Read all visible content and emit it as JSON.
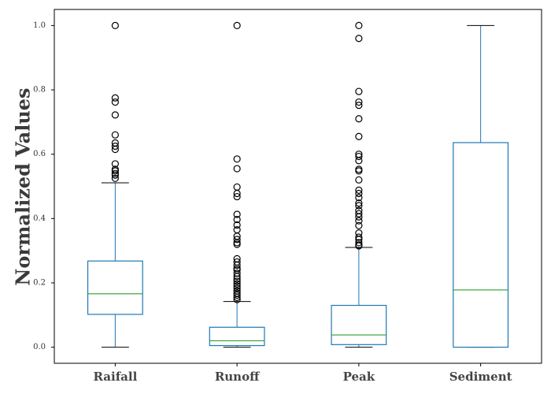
{
  "chart_data": {
    "type": "box",
    "title": "",
    "xlabel": "",
    "ylabel": "Normalized Values",
    "ylim": [
      -0.05,
      1.05
    ],
    "yticks": [
      0.0,
      0.2,
      0.4,
      0.6,
      0.8,
      1.0
    ],
    "ytick_labels": [
      "0.0",
      "0.2",
      "0.4",
      "0.6",
      "0.8",
      "1.0"
    ],
    "grid": false,
    "colors": {
      "box": "#1f77b4",
      "median": "#2ca02c",
      "whisker": "#1f77b4",
      "cap": "#000000",
      "flier": "#000000"
    },
    "categories": [
      "Raifall",
      "Runoff",
      "Peak",
      "Sediment"
    ],
    "boxes": [
      {
        "name": "Raifall",
        "whisker_low": 0.0,
        "q1": 0.102,
        "median": 0.166,
        "q3": 0.268,
        "whisker_high": 0.511,
        "fliers": [
          1.0,
          0.775,
          0.762,
          0.722,
          0.66,
          0.635,
          0.625,
          0.615,
          0.57,
          0.553,
          0.548,
          0.54,
          0.535,
          0.525
        ]
      },
      {
        "name": "Runoff",
        "whisker_low": 0.0,
        "q1": 0.005,
        "median": 0.02,
        "q3": 0.062,
        "whisker_high": 0.142,
        "fliers": [
          1.0,
          0.585,
          0.555,
          0.498,
          0.478,
          0.468,
          0.413,
          0.397,
          0.38,
          0.365,
          0.345,
          0.335,
          0.325,
          0.32,
          0.275,
          0.265,
          0.255,
          0.245,
          0.24,
          0.23,
          0.22,
          0.212,
          0.205,
          0.197,
          0.19,
          0.183,
          0.175,
          0.168,
          0.162,
          0.155,
          0.148
        ]
      },
      {
        "name": "Peak",
        "whisker_low": 0.0,
        "q1": 0.008,
        "median": 0.038,
        "q3": 0.13,
        "whisker_high": 0.31,
        "fliers": [
          1.0,
          0.96,
          0.795,
          0.762,
          0.752,
          0.71,
          0.655,
          0.6,
          0.593,
          0.58,
          0.553,
          0.548,
          0.52,
          0.488,
          0.478,
          0.465,
          0.448,
          0.44,
          0.425,
          0.415,
          0.405,
          0.393,
          0.378,
          0.355,
          0.342,
          0.335,
          0.325,
          0.318,
          0.315
        ]
      },
      {
        "name": "Sediment",
        "whisker_low": 0.0,
        "q1": 0.0,
        "median": 0.178,
        "q3": 0.636,
        "whisker_high": 1.0,
        "fliers": []
      }
    ]
  }
}
